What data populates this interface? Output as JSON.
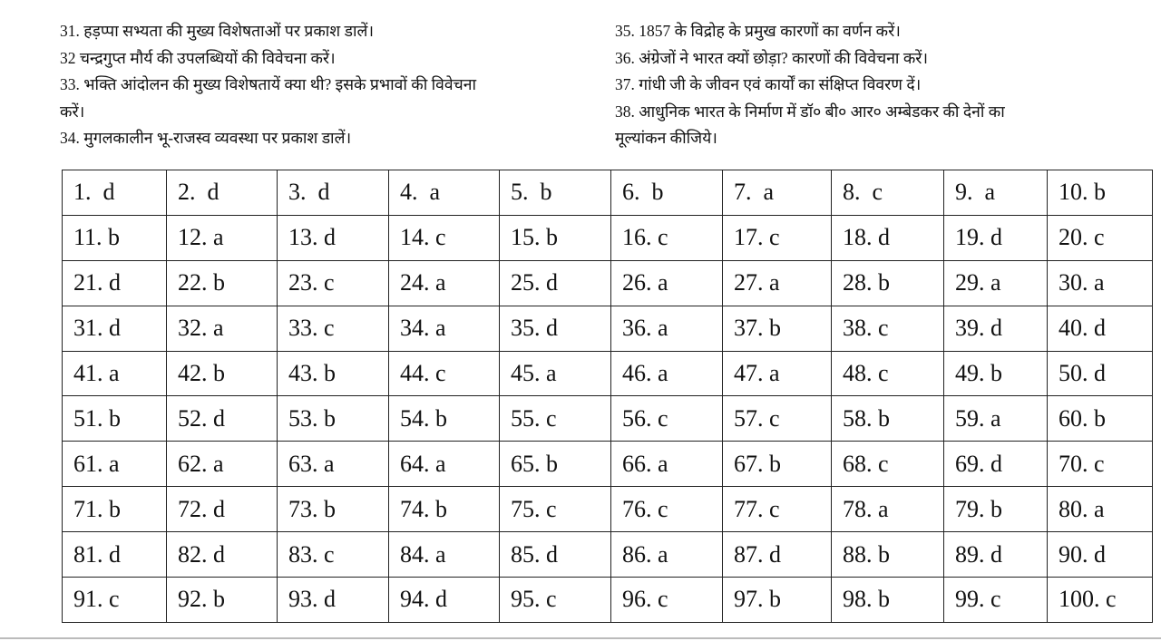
{
  "questions_left": [
    "31. हड़प्पा सभ्यता की मुख्य विशेषताओं पर प्रकाश डालें।",
    "32 चन्द्रगुप्त मौर्य की उपलब्धियों की विवेचना करें।",
    "33. भक्ति आंदोलन की मुख्य विशेषतायें क्या थी? इसके प्रभावों की विवेचना",
    "करें।",
    "34. मुगलकालीन भू-राजस्व व्यवस्था पर प्रकाश डालें।"
  ],
  "questions_right": [
    "35. 1857 के विद्रोह के प्रमुख कारणों का वर्णन करें।",
    "36. अंग्रेजों ने भारत क्यों छोड़ा? कारणों की विवेचना करें।",
    "37. गांधी जी के जीवन एवं कार्यों का संक्षिप्त विवरण दें।",
    "38. आधुनिक भारत के निर्माण में डॉ० बी० आर० अम्बेडकर की देनों का",
    "मूल्यांकन कीजिये।"
  ],
  "answer_key": [
    [
      "1.  d",
      "2.  d",
      "3.  d",
      "4.  a",
      "5.  b",
      "6.  b",
      "7.  a",
      "8.  c",
      "9.  a",
      "10. b"
    ],
    [
      "11. b",
      "12. a",
      "13. d",
      "14. c",
      "15. b",
      "16. c",
      "17. c",
      "18. d",
      "19. d",
      "20. c"
    ],
    [
      "21. d",
      "22. b",
      "23. c",
      "24. a",
      "25. d",
      "26. a",
      "27. a",
      "28. b",
      "29. a",
      "30. a"
    ],
    [
      "31. d",
      "32. a",
      "33. c",
      "34. a",
      "35. d",
      "36. a",
      "37. b",
      "38. c",
      "39. d",
      "40. d"
    ],
    [
      "41. a",
      "42. b",
      "43. b",
      "44. c",
      "45. a",
      "46. a",
      "47. a",
      "48. c",
      "49. b",
      "50. d"
    ],
    [
      "51. b",
      "52. d",
      "53. b",
      "54. b",
      "55. c",
      "56. c",
      "57. c",
      "58. b",
      "59. a",
      "60. b"
    ],
    [
      "61. a",
      "62. a",
      "63. a",
      "64. a",
      "65. b",
      "66. a",
      "67. b",
      "68. c",
      "69. d",
      "70. c"
    ],
    [
      "71. b",
      "72. d",
      "73. b",
      "74. b",
      "75. c",
      "76. c",
      "77. c",
      "78. a",
      "79. b",
      "80. a"
    ],
    [
      "81. d",
      "82. d",
      "83. c",
      "84. a",
      "85. d",
      "86. a",
      "87. d",
      "88. b",
      "89. d",
      "90. d"
    ],
    [
      "91. c",
      "92. b",
      "93. d",
      "94. d",
      "95. c",
      "96. c",
      "97. b",
      "98. b",
      "99. c",
      "100. c"
    ]
  ]
}
